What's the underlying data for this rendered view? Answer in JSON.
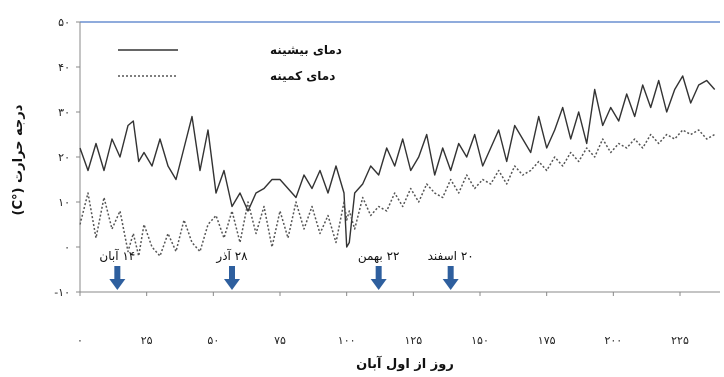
{
  "chart_data": {
    "type": "line",
    "xlabel": "روز از اول آبان",
    "ylabel": "درجه حرارت (°C)",
    "xlim": [
      0,
      240
    ],
    "ylim": [
      -10,
      50
    ],
    "x_ticks": [
      0,
      25,
      50,
      75,
      100,
      125,
      150,
      175,
      200,
      225
    ],
    "x_tick_labels": [
      "۰",
      "۲۵",
      "۵۰",
      "۷۵",
      "۱۰۰",
      "۱۲۵",
      "۱۵۰",
      "۱۷۵",
      "۲۰۰",
      "۲۲۵"
    ],
    "y_ticks": [
      -10,
      0,
      10,
      20,
      30,
      40,
      50
    ],
    "y_tick_labels": [
      "-۱۰",
      "۰",
      "۱۰",
      "۲۰",
      "۳۰",
      "۴۰",
      "۵۰"
    ],
    "legend_position": "top-left",
    "series": [
      {
        "name": "دمای بیشینه",
        "style": "solid",
        "color": "#333333",
        "x": [
          0,
          3,
          6,
          9,
          12,
          15,
          18,
          20,
          22,
          24,
          27,
          30,
          33,
          36,
          39,
          42,
          45,
          48,
          51,
          54,
          57,
          60,
          63,
          66,
          69,
          72,
          75,
          78,
          81,
          84,
          87,
          90,
          93,
          96,
          99,
          100,
          101,
          103,
          106,
          109,
          112,
          115,
          118,
          121,
          124,
          127,
          130,
          133,
          136,
          139,
          142,
          145,
          148,
          151,
          154,
          157,
          160,
          163,
          166,
          169,
          172,
          175,
          178,
          181,
          184,
          187,
          190,
          193,
          196,
          199,
          202,
          205,
          208,
          211,
          214,
          217,
          220,
          223,
          226,
          229,
          232,
          235,
          238
        ],
        "values": [
          22,
          17,
          23,
          17,
          24,
          20,
          27,
          28,
          19,
          21,
          18,
          24,
          18,
          15,
          22,
          29,
          17,
          26,
          12,
          17,
          9,
          12,
          8,
          12,
          13,
          15,
          15,
          13,
          11,
          16,
          13,
          17,
          12,
          18,
          12,
          0,
          1,
          12,
          14,
          18,
          16,
          22,
          18,
          24,
          17,
          20,
          25,
          16,
          22,
          17,
          23,
          20,
          25,
          18,
          22,
          26,
          19,
          27,
          24,
          21,
          29,
          22,
          26,
          31,
          24,
          30,
          23,
          35,
          27,
          31,
          28,
          34,
          29,
          36,
          31,
          37,
          30,
          35,
          38,
          32,
          36,
          37,
          35
        ]
      },
      {
        "name": "دمای کمینه",
        "style": "dotted",
        "color": "#555555",
        "x": [
          0,
          3,
          6,
          9,
          12,
          15,
          18,
          20,
          22,
          24,
          27,
          30,
          33,
          36,
          39,
          42,
          45,
          48,
          51,
          54,
          57,
          60,
          63,
          66,
          69,
          72,
          75,
          78,
          81,
          84,
          87,
          90,
          93,
          96,
          99,
          100,
          101,
          103,
          106,
          109,
          112,
          115,
          118,
          121,
          124,
          127,
          130,
          133,
          136,
          139,
          142,
          145,
          148,
          151,
          154,
          157,
          160,
          163,
          166,
          169,
          172,
          175,
          178,
          181,
          184,
          187,
          190,
          193,
          196,
          199,
          202,
          205,
          208,
          211,
          214,
          217,
          220,
          223,
          226,
          229,
          232,
          235,
          238
        ],
        "values": [
          5,
          12,
          2,
          11,
          4,
          8,
          -1,
          3,
          -2,
          5,
          0,
          -2,
          3,
          -1,
          6,
          1,
          -1,
          5,
          7,
          2,
          8,
          1,
          10,
          3,
          9,
          0,
          8,
          2,
          10,
          4,
          9,
          3,
          7,
          1,
          10,
          6,
          8,
          4,
          11,
          7,
          9,
          8,
          12,
          9,
          13,
          10,
          14,
          12,
          11,
          15,
          12,
          16,
          13,
          15,
          14,
          17,
          14,
          18,
          16,
          17,
          19,
          17,
          20,
          18,
          21,
          19,
          22,
          20,
          24,
          21,
          23,
          22,
          24,
          22,
          25,
          23,
          25,
          24,
          26,
          25,
          26,
          24,
          25
        ]
      }
    ],
    "annotations": [
      {
        "text": "۱۴ آبان",
        "x": 14
      },
      {
        "text": "۲۸ آذر",
        "x": 57
      },
      {
        "text": "۲۲ بهمن",
        "x": 112
      },
      {
        "text": "۲۰ اسفند",
        "x": 139
      }
    ]
  }
}
